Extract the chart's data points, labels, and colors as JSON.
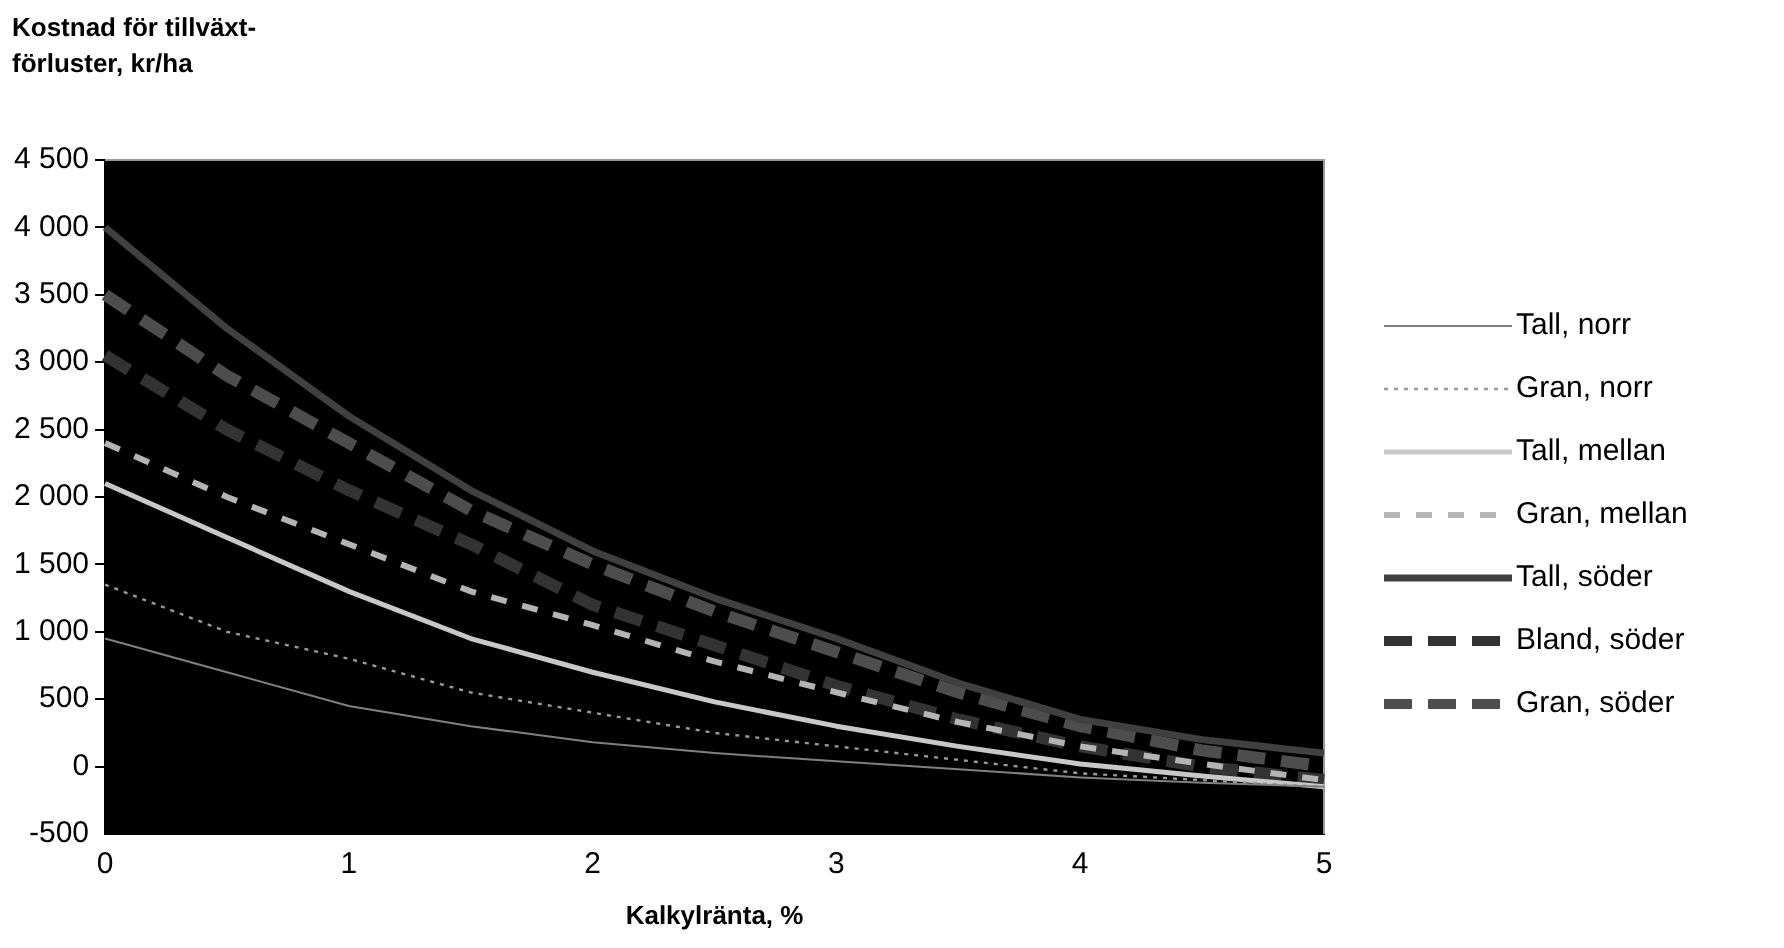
{
  "chart_data": {
    "type": "line",
    "title": "Kostnad för tillväxt-\nförluster, kr/ha",
    "xlabel": "Kalkylränta, %",
    "x": [
      0,
      0.5,
      1,
      1.5,
      2,
      2.5,
      3,
      3.5,
      4,
      4.5,
      5
    ],
    "xlim": [
      0,
      5
    ],
    "xticks": [
      0,
      1,
      2,
      3,
      4,
      5
    ],
    "ylim": [
      -500,
      4500
    ],
    "yticks": [
      -500,
      0,
      500,
      {
        "value": 1000,
        "label": "1 000"
      },
      {
        "value": 1500,
        "label": "1 500"
      },
      {
        "value": 2000,
        "label": "2 000"
      },
      {
        "value": 2500,
        "label": "2 500"
      },
      {
        "value": 3000,
        "label": "3 000"
      },
      {
        "value": 3500,
        "label": "3 500"
      },
      {
        "value": 4000,
        "label": "4 000"
      },
      {
        "value": 4500,
        "label": "4 500"
      }
    ],
    "grid": false,
    "legend": "right",
    "marker": "none",
    "series": [
      {
        "name": "Tall, norr",
        "color": "#808080",
        "line_style": "solid",
        "values": [
          950,
          700,
          450,
          300,
          180,
          100,
          40,
          -20,
          -80,
          -120,
          -150
        ]
      },
      {
        "name": "Gran, norr",
        "color": "#9a9a9a",
        "line_style": "dotted",
        "values": [
          1350,
          1000,
          800,
          550,
          400,
          250,
          150,
          50,
          -50,
          -100,
          -150
        ]
      },
      {
        "name": "Tall, mellan",
        "color": "#c8c8c8",
        "line_style": "solid",
        "values": [
          2100,
          1700,
          1300,
          950,
          700,
          480,
          300,
          150,
          20,
          -70,
          -150
        ]
      },
      {
        "name": "Gran, mellan",
        "color": "#b4b4b4",
        "line_style": "dashed",
        "values": [
          2400,
          2000,
          1650,
          1300,
          1050,
          780,
          550,
          330,
          150,
          20,
          -100
        ]
      },
      {
        "name": "Tall, söder",
        "color": "#404040",
        "line_style": "solid",
        "values": [
          4000,
          3250,
          2600,
          2050,
          1600,
          1250,
          950,
          620,
          350,
          200,
          100
        ]
      },
      {
        "name": "Bland, söder",
        "color": "#333333",
        "line_style": "dashed",
        "values": [
          3050,
          2500,
          2050,
          1650,
          1200,
          900,
          600,
          350,
          150,
          0,
          -100
        ]
      },
      {
        "name": "Gran, söder",
        "color": "#4d4d4d",
        "line_style": "dashed",
        "values": [
          3500,
          2900,
          2400,
          1900,
          1500,
          1150,
          850,
          550,
          300,
          120,
          0
        ]
      }
    ]
  }
}
